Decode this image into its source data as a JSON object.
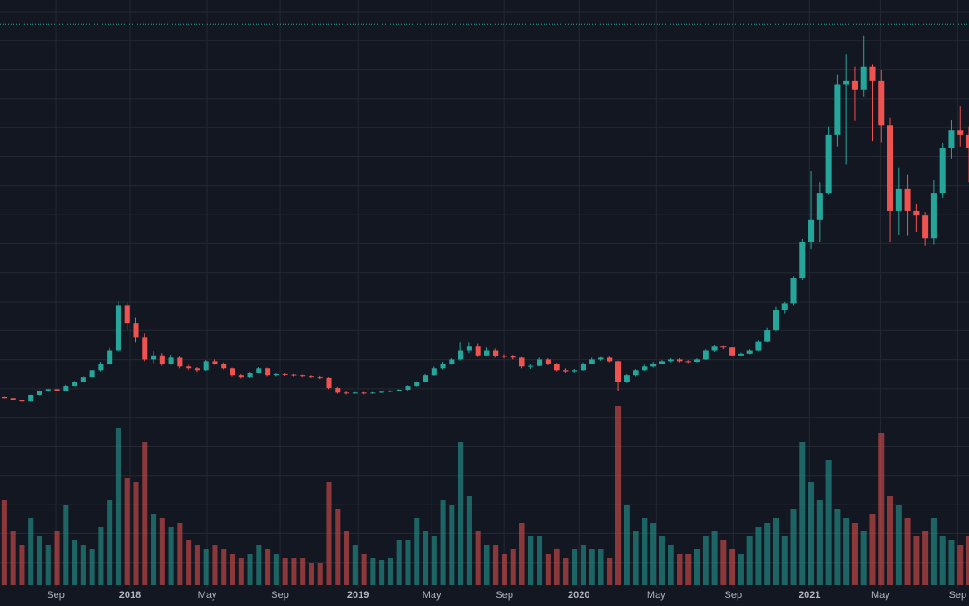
{
  "chart_data": {
    "type": "candlestick",
    "up_color": "#26a69a",
    "down_color": "#ef5350",
    "grid": true,
    "xlim": [
      0,
      110.5
    ],
    "xticks": [
      {
        "value": 6.35,
        "label": "Sep"
      },
      {
        "value": 14.84,
        "label": "2018"
      },
      {
        "value": 23.64,
        "label": "May"
      },
      {
        "value": 31.93,
        "label": "Sep"
      },
      {
        "value": 40.84,
        "label": "2019"
      },
      {
        "value": 49.23,
        "label": "May"
      },
      {
        "value": 57.52,
        "label": "Sep"
      },
      {
        "value": 66.02,
        "label": "2020"
      },
      {
        "value": 74.82,
        "label": "May"
      },
      {
        "value": 83.62,
        "label": "Sep"
      },
      {
        "value": 92.32,
        "label": "2021"
      },
      {
        "value": 100.41,
        "label": "May"
      },
      {
        "value": 109.21,
        "label": "Sep"
      }
    ],
    "ylim": [
      0,
      70830
    ],
    "price_line": 66700,
    "volume_lim": [
      0,
      210
    ],
    "ohlc": [
      [
        3800,
        3900,
        3500,
        3600
      ],
      [
        3600,
        3700,
        3200,
        3300
      ],
      [
        3300,
        3400,
        2900,
        3000
      ],
      [
        3000,
        4200,
        2900,
        4100
      ],
      [
        4100,
        4900,
        4000,
        4800
      ],
      [
        4800,
        5200,
        4600,
        5100
      ],
      [
        5100,
        5300,
        4700,
        4800
      ],
      [
        4800,
        5800,
        4700,
        5600
      ],
      [
        5600,
        6500,
        5500,
        6300
      ],
      [
        6300,
        7300,
        6200,
        7100
      ],
      [
        7100,
        8500,
        7000,
        8300
      ],
      [
        8300,
        9700,
        8100,
        9400
      ],
      [
        9400,
        12000,
        9200,
        11600
      ],
      [
        11600,
        20000,
        11400,
        19200
      ],
      [
        19200,
        19800,
        15000,
        16200
      ],
      [
        16200,
        17200,
        13000,
        13900
      ],
      [
        13900,
        14500,
        9800,
        10100
      ],
      [
        10100,
        11500,
        9500,
        10800
      ],
      [
        10800,
        11200,
        9000,
        9400
      ],
      [
        9400,
        10900,
        9200,
        10400
      ],
      [
        10400,
        10600,
        8600,
        8900
      ],
      [
        8900,
        9200,
        8300,
        8600
      ],
      [
        8600,
        8800,
        8000,
        8300
      ],
      [
        8300,
        10000,
        8200,
        9800
      ],
      [
        9800,
        10100,
        9200,
        9400
      ],
      [
        9400,
        9600,
        8400,
        8600
      ],
      [
        8600,
        8700,
        7200,
        7400
      ],
      [
        7400,
        7600,
        6900,
        7100
      ],
      [
        7100,
        8000,
        7000,
        7800
      ],
      [
        7800,
        8800,
        7700,
        8600
      ],
      [
        8600,
        8700,
        7200,
        7400
      ],
      [
        7400,
        7800,
        7200,
        7600
      ],
      [
        7600,
        7700,
        7300,
        7500
      ],
      [
        7500,
        7600,
        7200,
        7400
      ],
      [
        7400,
        7500,
        7100,
        7250
      ],
      [
        7250,
        7400,
        7000,
        7100
      ],
      [
        7100,
        7300,
        6800,
        7000
      ],
      [
        7000,
        7100,
        5100,
        5300
      ],
      [
        5300,
        5500,
        4300,
        4500
      ],
      [
        4500,
        4700,
        4200,
        4400
      ],
      [
        4400,
        4600,
        4300,
        4500
      ],
      [
        4500,
        4600,
        4200,
        4350
      ],
      [
        4350,
        4600,
        4300,
        4500
      ],
      [
        4500,
        4750,
        4400,
        4650
      ],
      [
        4650,
        4900,
        4550,
        4800
      ],
      [
        4800,
        5100,
        4700,
        5000
      ],
      [
        5000,
        5700,
        4900,
        5600
      ],
      [
        5600,
        6400,
        5500,
        6300
      ],
      [
        6300,
        7600,
        6200,
        7400
      ],
      [
        7400,
        8900,
        7300,
        8600
      ],
      [
        8600,
        9700,
        8400,
        9400
      ],
      [
        9400,
        10300,
        9200,
        10100
      ],
      [
        10100,
        13000,
        9900,
        11600
      ],
      [
        11600,
        13000,
        11200,
        12400
      ],
      [
        12400,
        12800,
        10500,
        10800
      ],
      [
        10800,
        12100,
        10600,
        11600
      ],
      [
        11600,
        11900,
        10400,
        10700
      ],
      [
        10700,
        11000,
        10300,
        10600
      ],
      [
        10600,
        10900,
        10100,
        10400
      ],
      [
        10400,
        10500,
        8600,
        8900
      ],
      [
        8900,
        9300,
        8500,
        9000
      ],
      [
        9000,
        10400,
        8900,
        10100
      ],
      [
        10100,
        10300,
        9100,
        9400
      ],
      [
        9400,
        9500,
        8100,
        8300
      ],
      [
        8300,
        8600,
        7800,
        8100
      ],
      [
        8100,
        8500,
        7900,
        8300
      ],
      [
        8300,
        9600,
        8200,
        9400
      ],
      [
        9400,
        10400,
        9300,
        10100
      ],
      [
        10100,
        10500,
        9900,
        10400
      ],
      [
        10400,
        10600,
        9600,
        9800
      ],
      [
        9800,
        9900,
        4800,
        6300
      ],
      [
        6300,
        7600,
        6100,
        7400
      ],
      [
        7400,
        8500,
        7200,
        8300
      ],
      [
        8300,
        9200,
        8200,
        8900
      ],
      [
        8900,
        9700,
        8700,
        9400
      ],
      [
        9400,
        10000,
        9300,
        9800
      ],
      [
        9800,
        10300,
        9600,
        10100
      ],
      [
        10100,
        10300,
        9600,
        9800
      ],
      [
        9800,
        10000,
        9500,
        9700
      ],
      [
        9700,
        10300,
        9600,
        10100
      ],
      [
        10100,
        11800,
        10000,
        11600
      ],
      [
        11600,
        12600,
        11400,
        12400
      ],
      [
        12400,
        12500,
        11800,
        12100
      ],
      [
        12100,
        12200,
        10600,
        10800
      ],
      [
        10800,
        11300,
        10600,
        11100
      ],
      [
        11100,
        11800,
        11000,
        11600
      ],
      [
        11600,
        13300,
        11500,
        13100
      ],
      [
        13100,
        15500,
        13000,
        15000
      ],
      [
        15000,
        19000,
        14800,
        18500
      ],
      [
        18500,
        19900,
        17800,
        19500
      ],
      [
        19500,
        24200,
        19200,
        23800
      ],
      [
        23800,
        30500,
        23500,
        29900
      ],
      [
        29900,
        41900,
        28800,
        33700
      ],
      [
        33700,
        40000,
        30000,
        38200
      ],
      [
        38200,
        49500,
        38000,
        48100
      ],
      [
        48100,
        58300,
        46000,
        56500
      ],
      [
        56500,
        61700,
        43000,
        57200
      ],
      [
        57200,
        59500,
        50400,
        55700
      ],
      [
        55700,
        64800,
        54500,
        59500
      ],
      [
        59500,
        60000,
        47000,
        57200
      ],
      [
        57200,
        59000,
        46800,
        49700
      ],
      [
        49700,
        51000,
        30000,
        35200
      ],
      [
        35200,
        42500,
        31100,
        39000
      ],
      [
        39000,
        41300,
        31000,
        35200
      ],
      [
        35200,
        36400,
        31700,
        34400
      ],
      [
        34400,
        35000,
        29300,
        30600
      ],
      [
        30600,
        40500,
        29500,
        38200
      ],
      [
        38200,
        46700,
        37400,
        45800
      ],
      [
        45800,
        50500,
        44000,
        48800
      ],
      [
        48800,
        52900,
        46000,
        48100
      ],
      [
        48100,
        49500,
        40000,
        45800
      ]
    ],
    "volume": [
      95,
      60,
      45,
      75,
      55,
      45,
      60,
      90,
      50,
      45,
      40,
      65,
      95,
      175,
      120,
      115,
      160,
      80,
      75,
      65,
      70,
      50,
      45,
      40,
      45,
      40,
      35,
      30,
      35,
      45,
      40,
      35,
      30,
      30,
      30,
      25,
      25,
      115,
      85,
      60,
      45,
      35,
      30,
      28,
      30,
      50,
      50,
      75,
      60,
      55,
      95,
      90,
      160,
      100,
      60,
      45,
      45,
      35,
      40,
      70,
      55,
      55,
      35,
      40,
      30,
      40,
      45,
      40,
      40,
      30,
      200,
      90,
      60,
      75,
      70,
      55,
      45,
      35,
      35,
      40,
      55,
      60,
      50,
      40,
      35,
      55,
      65,
      70,
      75,
      55,
      85,
      160,
      115,
      95,
      140,
      85,
      75,
      70,
      60,
      80,
      170,
      100,
      90,
      75,
      55,
      60,
      75,
      55,
      50,
      45,
      55
    ]
  }
}
